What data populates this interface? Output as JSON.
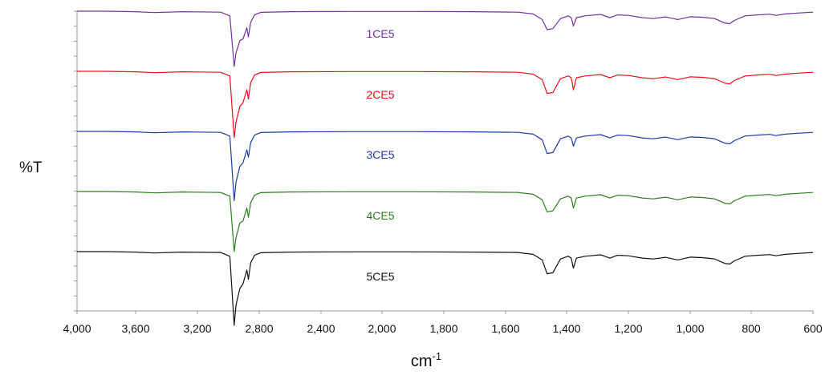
{
  "chart_data": {
    "type": "line",
    "title": "",
    "ylabel": "%T",
    "xlabel": "cm",
    "xlabel_superscript": "-1",
    "xlim": [
      4000,
      600
    ],
    "x_reversed": true,
    "x_ticks": [
      4000,
      3600,
      3200,
      2800,
      2400,
      2000,
      1800,
      1600,
      1400,
      1200,
      1000,
      800,
      600
    ],
    "x_tick_labels": [
      "4,000",
      "3,600",
      "3,200",
      "2,800",
      "2,400",
      "2,000",
      "1,800",
      "1,600",
      "1,400",
      "1,200",
      "1,000",
      "800",
      "600"
    ],
    "y_ticks_visible_labels": false,
    "grid": false,
    "series": [
      {
        "name": "1CE5",
        "color": "#7030a0",
        "x": [
          4000,
          3800,
          3600,
          3480,
          3300,
          3050,
          2990,
          2962,
          2950,
          2925,
          2905,
          2880,
          2870,
          2855,
          2830,
          2790,
          2600,
          2200,
          1900,
          1700,
          1560,
          1510,
          1480,
          1464,
          1445,
          1420,
          1395,
          1385,
          1378,
          1368,
          1340,
          1290,
          1260,
          1235,
          1200,
          1155,
          1120,
          1080,
          1040,
          1000,
          960,
          920,
          885,
          870,
          855,
          820,
          780,
          740,
          720,
          690,
          650,
          600
        ],
        "y": [
          100,
          100,
          99.5,
          98.5,
          99.5,
          99,
          95,
          40,
          55,
          68,
          70,
          82,
          72,
          88,
          96,
          98.8,
          99.5,
          99.7,
          99.7,
          99.5,
          99,
          97,
          91,
          80,
          81,
          92,
          95,
          93,
          84,
          93,
          95,
          96.5,
          93,
          96,
          95.5,
          93,
          92,
          93.8,
          91,
          94,
          93.5,
          92,
          87,
          86.5,
          90,
          95,
          96,
          96.8,
          95.5,
          97,
          98,
          99
        ]
      },
      {
        "name": "2CE5",
        "color": "#e8101e",
        "x": [
          4000,
          3800,
          3600,
          3480,
          3300,
          3050,
          2990,
          2962,
          2950,
          2925,
          2905,
          2880,
          2870,
          2855,
          2830,
          2790,
          2600,
          2200,
          1900,
          1700,
          1560,
          1510,
          1480,
          1464,
          1445,
          1420,
          1395,
          1385,
          1378,
          1368,
          1340,
          1290,
          1260,
          1235,
          1200,
          1155,
          1120,
          1080,
          1040,
          1000,
          960,
          920,
          885,
          870,
          855,
          820,
          780,
          740,
          720,
          690,
          650,
          600
        ],
        "y": [
          100,
          100,
          99.5,
          98.5,
          99.5,
          99,
          95,
          28,
          45,
          62,
          66,
          80,
          70,
          88,
          96,
          98.8,
          99.5,
          99.7,
          99.7,
          99.5,
          99,
          97,
          91,
          76,
          77,
          92,
          95,
          93,
          80,
          93,
          95,
          96.5,
          93,
          96,
          95.5,
          93,
          92,
          93.8,
          91,
          94,
          93.5,
          92,
          87,
          86.5,
          90,
          95,
          96,
          96.8,
          95.5,
          97,
          98,
          99
        ]
      },
      {
        "name": "3CE5",
        "color": "#1f3aa0",
        "x": [
          4000,
          3800,
          3600,
          3480,
          3300,
          3050,
          2990,
          2962,
          2950,
          2925,
          2905,
          2880,
          2870,
          2855,
          2830,
          2790,
          2600,
          2200,
          1900,
          1700,
          1560,
          1510,
          1480,
          1464,
          1445,
          1420,
          1395,
          1385,
          1378,
          1368,
          1340,
          1290,
          1260,
          1235,
          1200,
          1155,
          1120,
          1080,
          1040,
          1000,
          960,
          920,
          885,
          870,
          855,
          820,
          780,
          740,
          720,
          690,
          650,
          600
        ],
        "y": [
          100,
          100,
          99.5,
          98.5,
          99.5,
          99,
          95,
          25,
          45,
          62,
          66,
          80,
          72,
          88,
          96,
          98.8,
          99.5,
          99.7,
          99.7,
          99.5,
          99,
          97,
          91,
          76,
          77,
          92,
          95,
          93,
          84,
          93,
          95,
          96.5,
          93,
          96,
          95.5,
          93,
          92,
          93.8,
          91,
          94,
          93.5,
          92,
          87,
          86.5,
          90,
          95,
          96,
          96.8,
          95.5,
          97,
          98,
          99
        ]
      },
      {
        "name": "4CE5",
        "color": "#2e7d1e",
        "x": [
          4000,
          3800,
          3600,
          3480,
          3300,
          3050,
          2990,
          2962,
          2950,
          2925,
          2905,
          2880,
          2870,
          2855,
          2830,
          2790,
          2600,
          2200,
          1900,
          1700,
          1560,
          1510,
          1480,
          1464,
          1445,
          1420,
          1395,
          1385,
          1378,
          1368,
          1340,
          1290,
          1260,
          1235,
          1200,
          1155,
          1120,
          1080,
          1040,
          1000,
          960,
          920,
          885,
          870,
          855,
          820,
          780,
          740,
          720,
          690,
          650,
          600
        ],
        "y": [
          100,
          100,
          99.5,
          98.5,
          99.5,
          99,
          95,
          35,
          50,
          66,
          68,
          82,
          72,
          88,
          96,
          98.8,
          99.5,
          99.7,
          99.7,
          99.5,
          99,
          97,
          91,
          78,
          79,
          92,
          95,
          93,
          82,
          93,
          95,
          96.5,
          93,
          96,
          95.5,
          93,
          92,
          93.8,
          91,
          94,
          93.5,
          92,
          87,
          86.5,
          90,
          95,
          96,
          96.8,
          95.5,
          97,
          98,
          99
        ]
      },
      {
        "name": "5CE5",
        "color": "#111111",
        "x": [
          4000,
          3800,
          3600,
          3480,
          3300,
          3050,
          2990,
          2962,
          2950,
          2925,
          2905,
          2880,
          2870,
          2855,
          2830,
          2790,
          2600,
          2200,
          1900,
          1700,
          1560,
          1510,
          1480,
          1464,
          1445,
          1420,
          1395,
          1385,
          1378,
          1368,
          1340,
          1290,
          1260,
          1235,
          1200,
          1155,
          1120,
          1080,
          1040,
          1000,
          960,
          920,
          885,
          870,
          855,
          820,
          780,
          740,
          720,
          690,
          650,
          600
        ],
        "y": [
          100,
          100,
          99.5,
          98.5,
          99.5,
          99,
          95,
          20,
          42,
          60,
          65,
          80,
          70,
          88,
          96,
          98.8,
          99.5,
          99.7,
          99.7,
          99.5,
          99,
          97,
          91,
          76,
          77,
          92,
          95,
          93,
          82,
          93,
          95,
          96.5,
          93,
          96,
          95.5,
          93,
          92,
          93.8,
          91,
          94,
          93.5,
          92,
          87,
          86.5,
          90,
          95,
          96,
          96.8,
          95.5,
          97,
          98,
          99
        ]
      }
    ]
  }
}
